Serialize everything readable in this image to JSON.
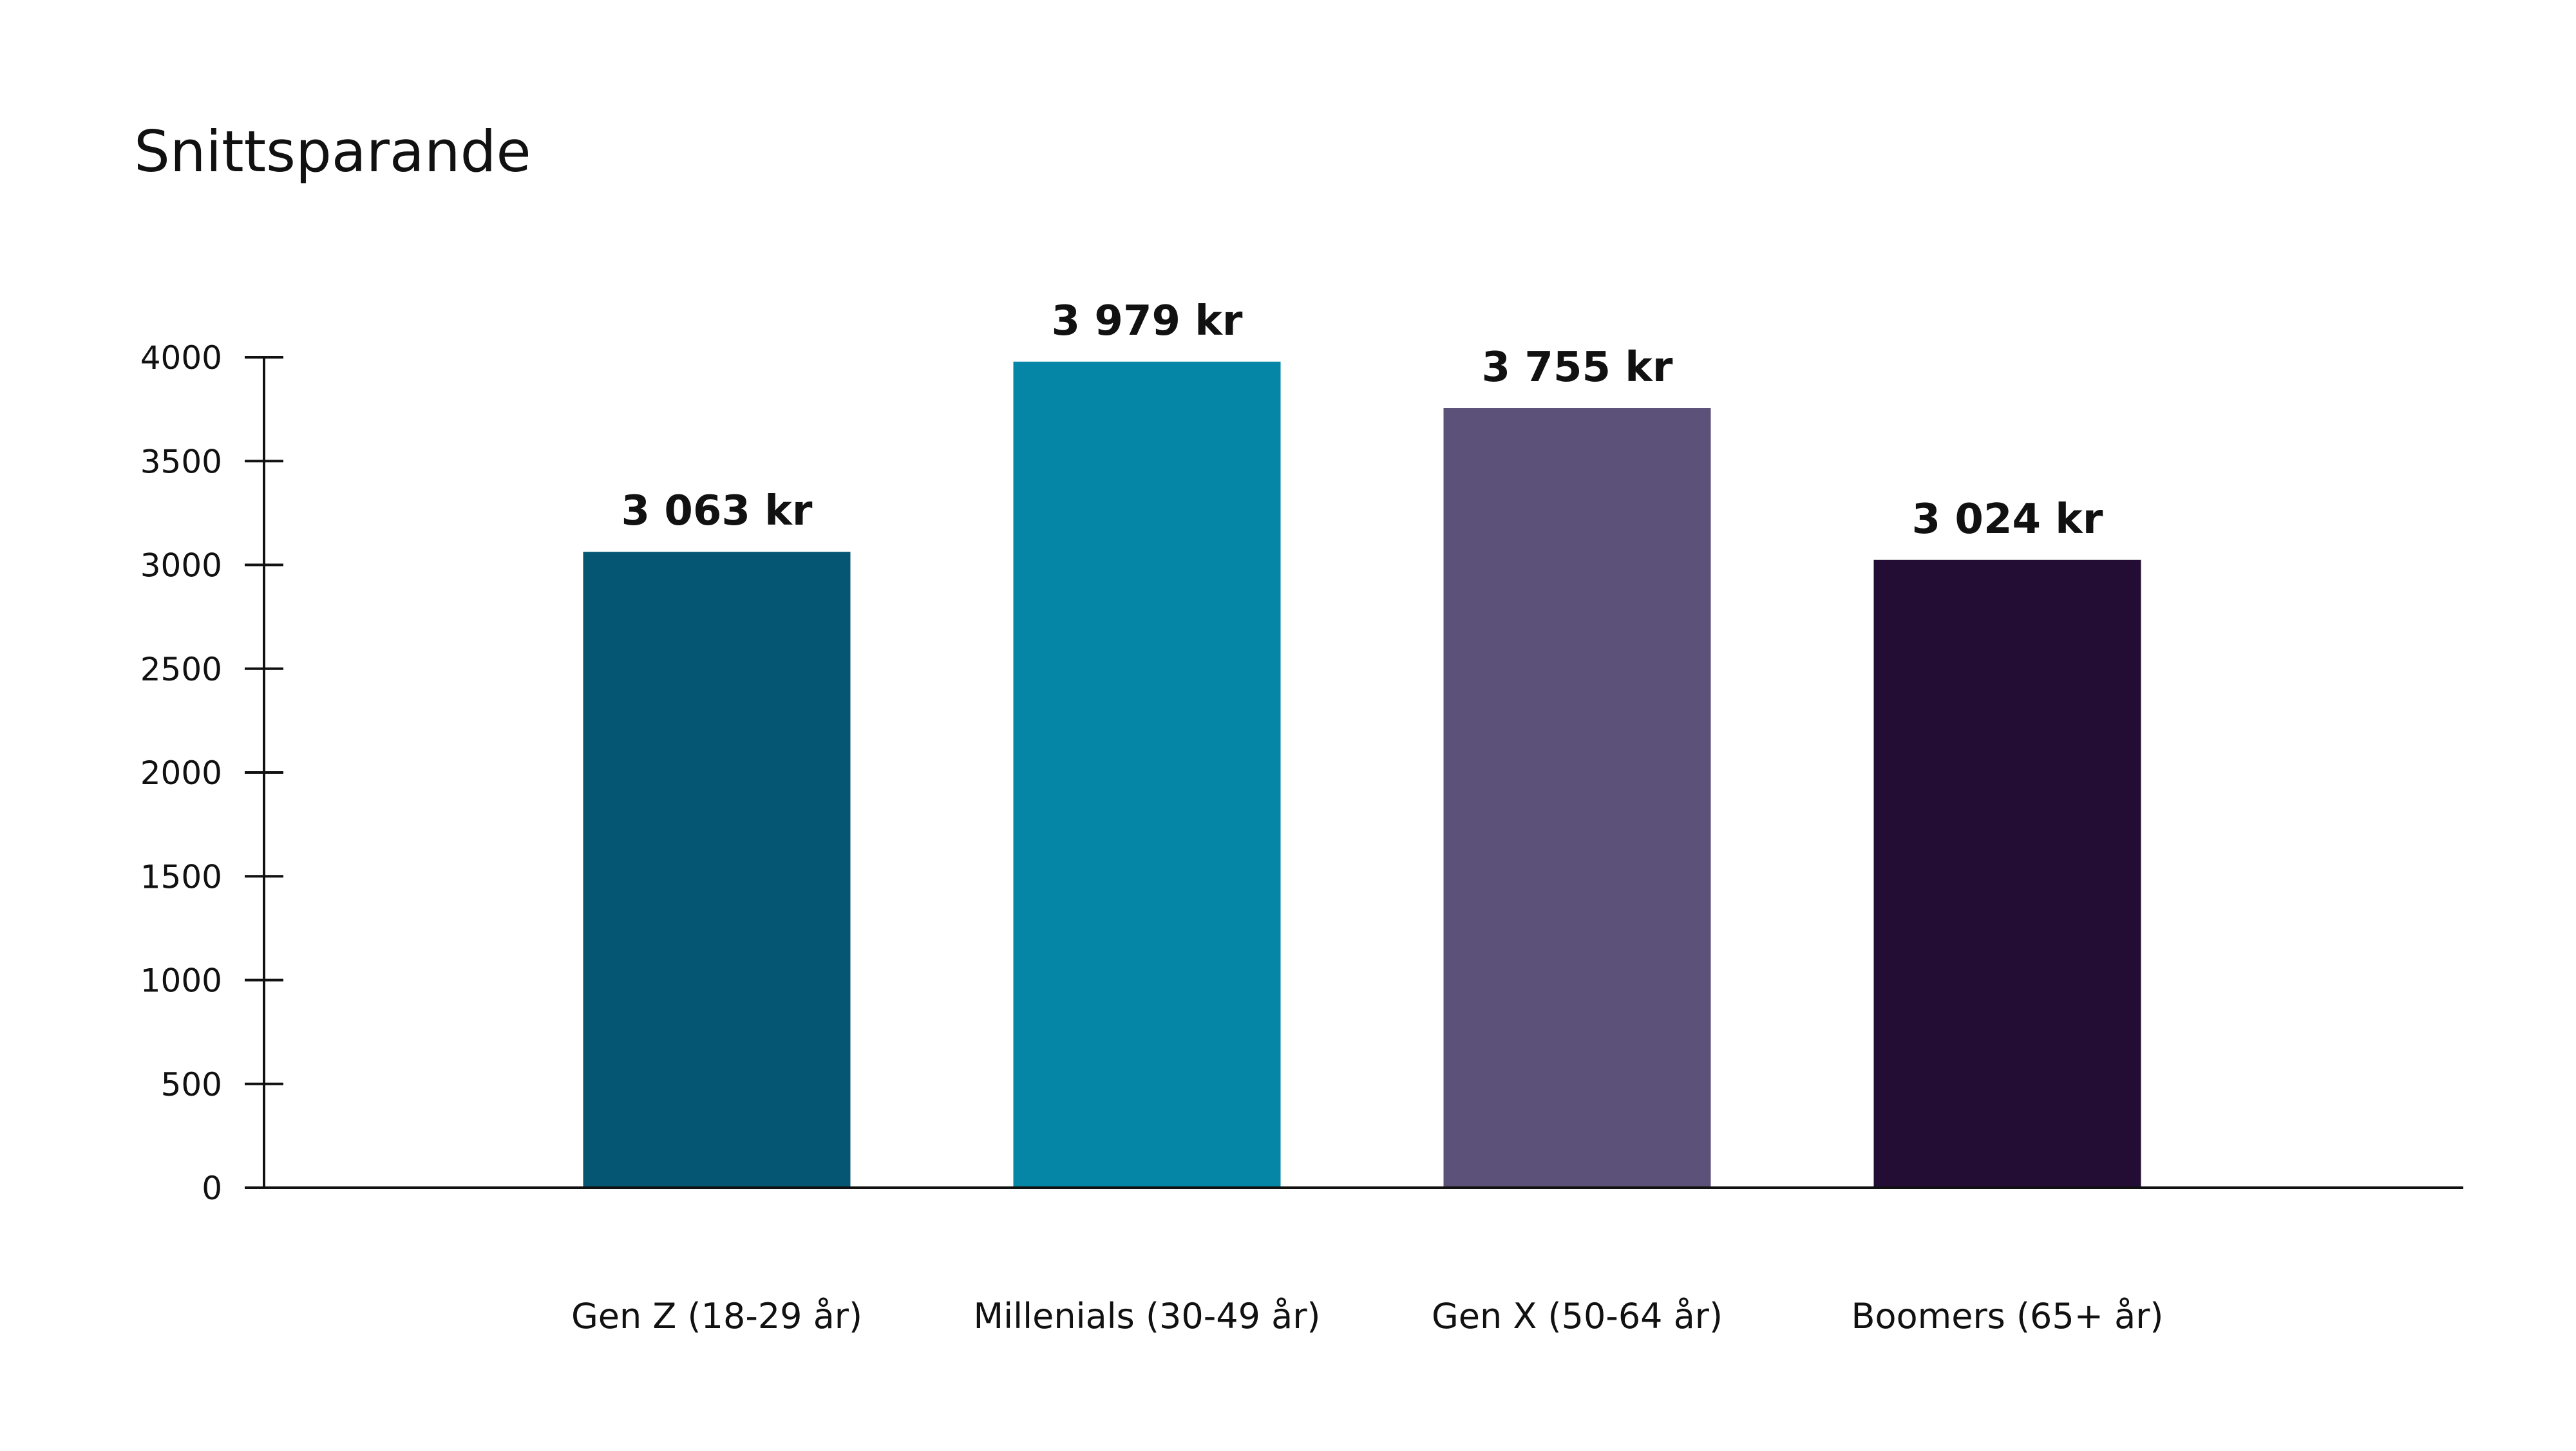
{
  "chart_data": {
    "type": "bar",
    "title": "Snittsparande",
    "categories": [
      "Gen Z (18-29 år)",
      "Millenials (30-49 år)",
      "Gen X (50-64 år)",
      "Boomers (65+ år)"
    ],
    "values": [
      3063,
      3979,
      3755,
      3024
    ],
    "data_labels": [
      "3 063 kr",
      "3 979 kr",
      "3 755 kr",
      "3 024 kr"
    ],
    "bar_colors": [
      "#045672",
      "#0686a6",
      "#5c5279",
      "#230d34"
    ],
    "ylim": [
      0,
      4000
    ],
    "yticks": [
      0,
      500,
      1000,
      1500,
      2000,
      2500,
      3000,
      3500,
      4000
    ],
    "xlabel": "",
    "ylabel": "",
    "grid": false,
    "legend": "none"
  }
}
